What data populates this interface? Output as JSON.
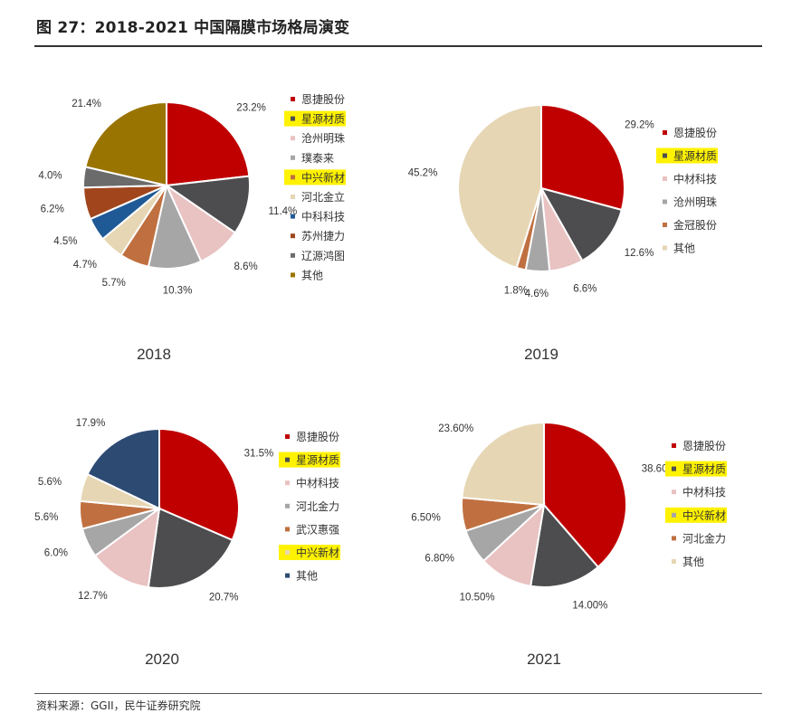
{
  "header": {
    "title": "图 27：2018-2021 中国隔膜市场格局演变"
  },
  "footer": {
    "source": "资料来源：GGII，民牛证券研究院"
  },
  "colors": {
    "enjie": "#C00000",
    "xingyuan": "#4D4D4F",
    "pink": "#E9C2C2",
    "gray": "#A6A6A6",
    "orange": "#C07040",
    "beige": "#E6D6B4",
    "blue": "#1F5A96",
    "brown": "#A0451C",
    "darkgray": "#6B6B6B",
    "olive": "#9A7400",
    "navy": "#2D4A72",
    "highlight": "#FFF200"
  },
  "chart_data": [
    {
      "type": "pie",
      "title": "2018",
      "series": [
        {
          "label": "恩捷股份",
          "value": 23.2,
          "display": "23.2%",
          "color": "#C00000",
          "highlight": false
        },
        {
          "label": "星源材质",
          "value": 11.4,
          "display": "11.4%",
          "color": "#4D4D4F",
          "highlight": true
        },
        {
          "label": "沧州明珠",
          "value": 8.6,
          "display": "8.6%",
          "color": "#E9C2C2",
          "highlight": false
        },
        {
          "label": "璞泰来",
          "value": 10.3,
          "display": "10.3%",
          "color": "#A6A6A6",
          "highlight": false
        },
        {
          "label": "中兴新材",
          "value": 5.7,
          "display": "5.7%",
          "color": "#C07040",
          "highlight": true
        },
        {
          "label": "河北金立",
          "value": 4.7,
          "display": "4.7%",
          "color": "#E6D6B4",
          "highlight": false
        },
        {
          "label": "中科科技",
          "value": 4.5,
          "display": "4.5%",
          "color": "#1F5A96",
          "highlight": false
        },
        {
          "label": "苏州捷力",
          "value": 6.2,
          "display": "6.2%",
          "color": "#A0451C",
          "highlight": false
        },
        {
          "label": "辽源鸿图",
          "value": 4.0,
          "display": "4.0%",
          "color": "#6B6B6B",
          "highlight": false
        },
        {
          "label": "其他",
          "value": 21.4,
          "display": "21.4%",
          "color": "#9A7400",
          "highlight": false
        }
      ]
    },
    {
      "type": "pie",
      "title": "2019",
      "series": [
        {
          "label": "恩捷股份",
          "value": 29.2,
          "display": "29.2%",
          "color": "#C00000",
          "highlight": false
        },
        {
          "label": "星源材质",
          "value": 12.6,
          "display": "12.6%",
          "color": "#4D4D4F",
          "highlight": true
        },
        {
          "label": "中材科技",
          "value": 6.6,
          "display": "6.6%",
          "color": "#E9C2C2",
          "highlight": false
        },
        {
          "label": "沧州明珠",
          "value": 4.6,
          "display": "4.6%",
          "color": "#A6A6A6",
          "highlight": false
        },
        {
          "label": "金冠股份",
          "value": 1.8,
          "display": "1.8%",
          "color": "#C07040",
          "highlight": false
        },
        {
          "label": "其他",
          "value": 45.2,
          "display": "45.2%",
          "color": "#E6D6B4",
          "highlight": false
        }
      ]
    },
    {
      "type": "pie",
      "title": "2020",
      "series": [
        {
          "label": "恩捷股份",
          "value": 31.5,
          "display": "31.5%",
          "color": "#C00000",
          "highlight": false
        },
        {
          "label": "星源材质",
          "value": 20.7,
          "display": "20.7%",
          "color": "#4D4D4F",
          "highlight": true
        },
        {
          "label": "中材科技",
          "value": 12.7,
          "display": "12.7%",
          "color": "#E9C2C2",
          "highlight": false
        },
        {
          "label": "河北金力",
          "value": 6.0,
          "display": "6.0%",
          "color": "#A6A6A6",
          "highlight": false
        },
        {
          "label": "武汉惠强",
          "value": 5.6,
          "display": "5.6%",
          "color": "#C07040",
          "highlight": false
        },
        {
          "label": "中兴新材",
          "value": 5.6,
          "display": "5.6%",
          "color": "#E6D6B4",
          "highlight": true
        },
        {
          "label": "其他",
          "value": 17.9,
          "display": "17.9%",
          "color": "#2D4A72",
          "highlight": false
        }
      ]
    },
    {
      "type": "pie",
      "title": "2021",
      "series": [
        {
          "label": "恩捷股份",
          "value": 38.6,
          "display": "38.60%",
          "color": "#C00000",
          "highlight": false
        },
        {
          "label": "星源材质",
          "value": 14.0,
          "display": "14.00%",
          "color": "#4D4D4F",
          "highlight": true
        },
        {
          "label": "中材科技",
          "value": 10.5,
          "display": "10.50%",
          "color": "#E9C2C2",
          "highlight": false
        },
        {
          "label": "中兴新材",
          "value": 6.8,
          "display": "6.80%",
          "color": "#A6A6A6",
          "highlight": true
        },
        {
          "label": "河北金力",
          "value": 6.5,
          "display": "6.50%",
          "color": "#C07040",
          "highlight": false
        },
        {
          "label": "其他",
          "value": 23.6,
          "display": "23.60%",
          "color": "#E6D6B4",
          "highlight": false
        }
      ]
    }
  ]
}
